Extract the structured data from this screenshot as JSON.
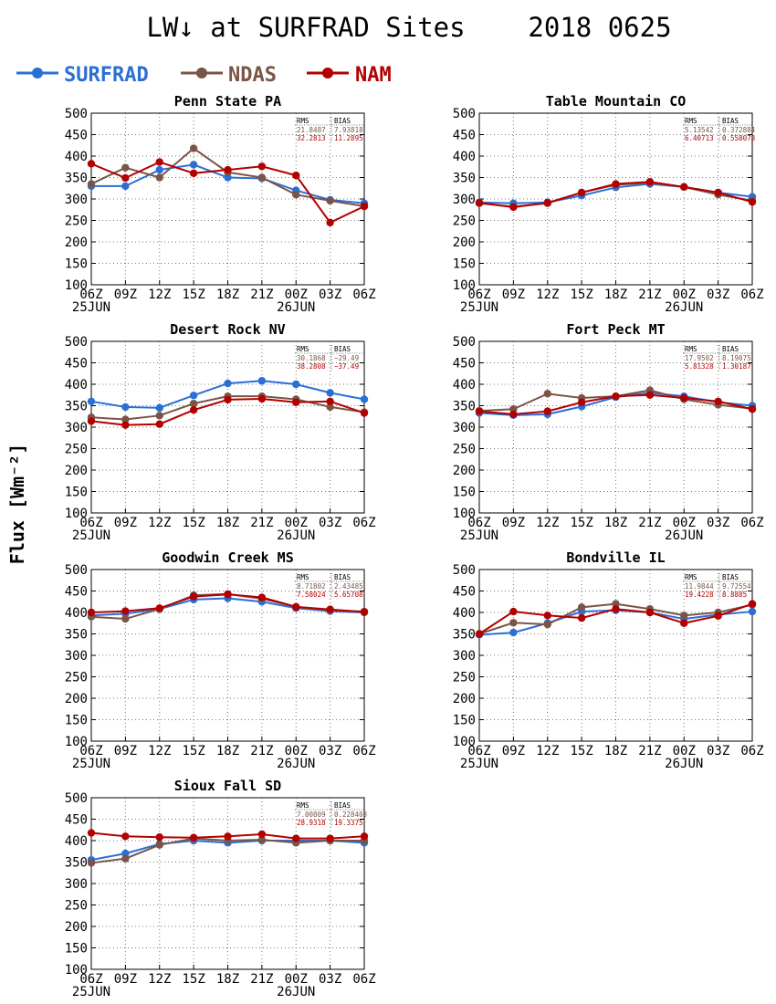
{
  "page": {
    "title": "LW↓ at SURFRAD Sites",
    "date": "2018 0625",
    "ylabel": "Flux [Wm⁻²]"
  },
  "legend": [
    {
      "name": "SURFRAD",
      "color": "#2b6fd6"
    },
    {
      "name": "NDAS",
      "color": "#7a5547"
    },
    {
      "name": "NAM",
      "color": "#b30000"
    }
  ],
  "chart_data": [
    {
      "type": "line",
      "title": "Penn State PA",
      "categories": [
        "06Z",
        "09Z",
        "12Z",
        "15Z",
        "18Z",
        "21Z",
        "00Z",
        "03Z",
        "06Z"
      ],
      "day_labels": [
        "25JUN",
        "26JUN"
      ],
      "ylim": [
        100,
        500
      ],
      "yticks": [
        100,
        150,
        200,
        250,
        300,
        350,
        400,
        450,
        500
      ],
      "grid": true,
      "stats": {
        "header": [
          "RMS",
          "BIAS"
        ],
        "rows": [
          [
            "21.8487",
            "7.93818"
          ],
          [
            "32.2813",
            "11.2895"
          ]
        ]
      },
      "series": [
        {
          "name": "SURFRAD",
          "values": [
            330,
            330,
            368,
            380,
            350,
            348,
            320,
            298,
            290
          ]
        },
        {
          "name": "NDAS",
          "values": [
            335,
            373,
            350,
            418,
            362,
            350,
            310,
            296,
            283
          ]
        },
        {
          "name": "NAM",
          "values": [
            382,
            349,
            386,
            360,
            368,
            376,
            355,
            245,
            283
          ]
        }
      ]
    },
    {
      "type": "line",
      "title": "Table Mountain CO",
      "categories": [
        "06Z",
        "09Z",
        "12Z",
        "15Z",
        "18Z",
        "21Z",
        "00Z",
        "03Z",
        "06Z"
      ],
      "day_labels": [
        "25JUN",
        "26JUN"
      ],
      "ylim": [
        100,
        500
      ],
      "yticks": [
        100,
        150,
        200,
        250,
        300,
        350,
        400,
        450,
        500
      ],
      "grid": true,
      "stats": {
        "header": [
          "RMS",
          "BIAS"
        ],
        "rows": [
          [
            "5.13542",
            "0.372884"
          ],
          [
            "6.40713",
            "0.558078"
          ]
        ]
      },
      "series": [
        {
          "name": "SURFRAD",
          "values": [
            292,
            290,
            292,
            308,
            327,
            335,
            328,
            315,
            305
          ]
        },
        {
          "name": "NDAS",
          "values": [
            290,
            282,
            290,
            315,
            333,
            338,
            328,
            310,
            296
          ]
        },
        {
          "name": "NAM",
          "values": [
            291,
            281,
            291,
            315,
            335,
            340,
            328,
            315,
            293
          ]
        }
      ]
    },
    {
      "type": "line",
      "title": "Desert Rock NV",
      "categories": [
        "06Z",
        "09Z",
        "12Z",
        "15Z",
        "18Z",
        "21Z",
        "00Z",
        "03Z",
        "06Z"
      ],
      "day_labels": [
        "25JUN",
        "26JUN"
      ],
      "ylim": [
        100,
        500
      ],
      "yticks": [
        100,
        150,
        200,
        250,
        300,
        350,
        400,
        450,
        500
      ],
      "grid": true,
      "stats": {
        "header": [
          "RMS",
          "BIAS"
        ],
        "rows": [
          [
            "30.1868",
            "−29.49"
          ],
          [
            "38.2808",
            "−37.49"
          ]
        ]
      },
      "series": [
        {
          "name": "SURFRAD",
          "values": [
            360,
            347,
            345,
            374,
            402,
            408,
            400,
            380,
            365
          ]
        },
        {
          "name": "NDAS",
          "values": [
            323,
            318,
            327,
            355,
            372,
            372,
            365,
            347,
            335
          ]
        },
        {
          "name": "NAM",
          "values": [
            314,
            305,
            307,
            340,
            364,
            366,
            358,
            360,
            333
          ]
        }
      ]
    },
    {
      "type": "line",
      "title": "Fort Peck MT",
      "categories": [
        "06Z",
        "09Z",
        "12Z",
        "15Z",
        "18Z",
        "21Z",
        "00Z",
        "03Z",
        "06Z"
      ],
      "day_labels": [
        "25JUN",
        "26JUN"
      ],
      "ylim": [
        100,
        500
      ],
      "yticks": [
        100,
        150,
        200,
        250,
        300,
        350,
        400,
        450,
        500
      ],
      "grid": true,
      "stats": {
        "header": [
          "RMS",
          "BIAS"
        ],
        "rows": [
          [
            "17.9502",
            "8.19075"
          ],
          [
            "5.81328",
            "1.30187"
          ]
        ]
      },
      "series": [
        {
          "name": "SURFRAD",
          "values": [
            333,
            328,
            330,
            348,
            370,
            380,
            372,
            358,
            350
          ]
        },
        {
          "name": "NDAS",
          "values": [
            338,
            342,
            378,
            368,
            372,
            386,
            365,
            352,
            343
          ]
        },
        {
          "name": "NAM",
          "values": [
            337,
            330,
            337,
            358,
            372,
            375,
            368,
            360,
            342
          ]
        }
      ]
    },
    {
      "type": "line",
      "title": "Goodwin Creek MS",
      "categories": [
        "06Z",
        "09Z",
        "12Z",
        "15Z",
        "18Z",
        "21Z",
        "00Z",
        "03Z",
        "06Z"
      ],
      "day_labels": [
        "25JUN",
        "26JUN"
      ],
      "ylim": [
        100,
        500
      ],
      "yticks": [
        100,
        150,
        200,
        250,
        300,
        350,
        400,
        450,
        500
      ],
      "grid": true,
      "stats": {
        "header": [
          "RMS",
          "BIAS"
        ],
        "rows": [
          [
            "8.71802",
            "2.43485"
          ],
          [
            "7.58024",
            "5.65708"
          ]
        ]
      },
      "series": [
        {
          "name": "SURFRAD",
          "values": [
            393,
            397,
            408,
            430,
            433,
            425,
            410,
            403,
            400
          ]
        },
        {
          "name": "NDAS",
          "values": [
            390,
            385,
            408,
            440,
            443,
            432,
            413,
            405,
            402
          ]
        },
        {
          "name": "NAM",
          "values": [
            400,
            403,
            410,
            437,
            442,
            435,
            413,
            407,
            401
          ]
        }
      ]
    },
    {
      "type": "line",
      "title": "Bondville IL",
      "categories": [
        "06Z",
        "09Z",
        "12Z",
        "15Z",
        "18Z",
        "21Z",
        "00Z",
        "03Z",
        "06Z"
      ],
      "day_labels": [
        "25JUN",
        "26JUN"
      ],
      "ylim": [
        100,
        500
      ],
      "yticks": [
        100,
        150,
        200,
        250,
        300,
        350,
        400,
        450,
        500
      ],
      "grid": true,
      "stats": {
        "header": [
          "RMS",
          "BIAS"
        ],
        "rows": [
          [
            "11.9844",
            "9.72554"
          ],
          [
            "19.4228",
            "8.8885"
          ]
        ]
      },
      "series": [
        {
          "name": "SURFRAD",
          "values": [
            348,
            353,
            375,
            402,
            405,
            400,
            385,
            395,
            402
          ]
        },
        {
          "name": "NDAS",
          "values": [
            350,
            376,
            372,
            412,
            420,
            408,
            393,
            400,
            418
          ]
        },
        {
          "name": "NAM",
          "values": [
            350,
            402,
            393,
            387,
            408,
            400,
            375,
            392,
            420
          ]
        }
      ]
    },
    {
      "type": "line",
      "title": "Sioux Fall SD",
      "categories": [
        "06Z",
        "09Z",
        "12Z",
        "15Z",
        "18Z",
        "21Z",
        "00Z",
        "03Z",
        "06Z"
      ],
      "day_labels": [
        "25JUN",
        "26JUN"
      ],
      "ylim": [
        100,
        500
      ],
      "yticks": [
        100,
        150,
        200,
        250,
        300,
        350,
        400,
        450,
        500
      ],
      "grid": true,
      "stats": {
        "header": [
          "RMS",
          "BIAS"
        ],
        "rows": [
          [
            "7.00809",
            "0.228403"
          ],
          [
            "28.9318",
            "19.3375"
          ]
        ]
      },
      "series": [
        {
          "name": "SURFRAD",
          "values": [
            355,
            370,
            392,
            400,
            395,
            400,
            400,
            400,
            395
          ]
        },
        {
          "name": "NDAS",
          "values": [
            348,
            358,
            390,
            405,
            400,
            402,
            395,
            400,
            400
          ]
        },
        {
          "name": "NAM",
          "values": [
            418,
            410,
            408,
            407,
            410,
            415,
            405,
            405,
            410
          ]
        }
      ]
    }
  ]
}
